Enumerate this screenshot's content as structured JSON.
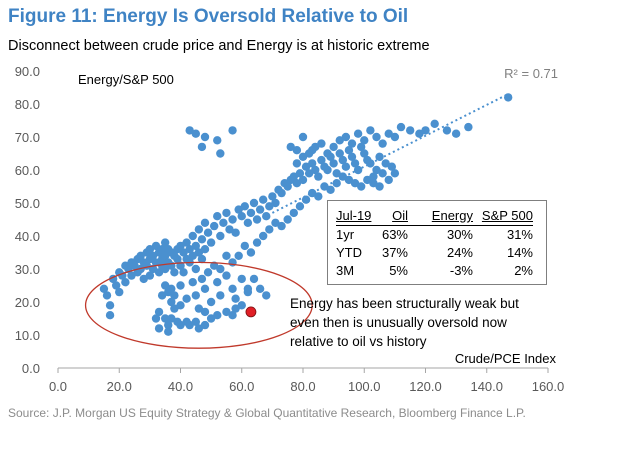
{
  "figure": {
    "title": "Figure 11: Energy Is Oversold Relative to Oil",
    "subtitle": "Disconnect between crude price and Energy is at historic extreme",
    "source": "Source: J.P. Morgan US Equity Strategy & Global Quantitative Research, Bloomberg Finance L.P."
  },
  "chart_data": {
    "type": "scatter",
    "xlabel": "Crude/PCE Index",
    "ylabel": "Energy/S&P 500",
    "xlim": [
      0,
      160
    ],
    "ylim": [
      0,
      90
    ],
    "x_ticks": [
      "0.0",
      "20.0",
      "40.0",
      "60.0",
      "80.0",
      "100.0",
      "120.0",
      "140.0",
      "160.0"
    ],
    "y_ticks": [
      "0.0",
      "10.0",
      "20.0",
      "30.0",
      "40.0",
      "50.0",
      "60.0",
      "70.0",
      "80.0",
      "90.0"
    ],
    "grid": false,
    "r_squared_label": "R² = 0.71",
    "trendline": {
      "style": "dotted",
      "x": [
        70,
        147
      ],
      "y": [
        47,
        83
      ]
    },
    "colors": {
      "points": "#4a90cf",
      "highlight": "#e01f26",
      "trendline": "#4a90cf",
      "ellipse": "#c0392b"
    },
    "current_point": {
      "x": 63,
      "y": 17
    },
    "highlight_region": {
      "cx": 46,
      "cy": 19,
      "rx": 37,
      "ry": 13
    },
    "series": [
      {
        "points": [
          [
            15,
            24
          ],
          [
            16,
            22
          ],
          [
            17,
            19
          ],
          [
            17,
            16
          ],
          [
            18,
            27
          ],
          [
            19,
            25
          ],
          [
            20,
            23
          ],
          [
            20,
            29
          ],
          [
            21,
            28
          ],
          [
            22,
            31
          ],
          [
            22,
            26
          ],
          [
            23,
            30
          ],
          [
            24,
            32
          ],
          [
            24,
            28
          ],
          [
            25,
            31
          ],
          [
            26,
            33
          ],
          [
            26,
            29
          ],
          [
            27,
            34
          ],
          [
            27,
            30
          ],
          [
            28,
            32
          ],
          [
            28,
            27
          ],
          [
            29,
            35
          ],
          [
            29,
            31
          ],
          [
            30,
            36
          ],
          [
            30,
            33
          ],
          [
            30,
            28
          ],
          [
            31,
            34
          ],
          [
            31,
            30
          ],
          [
            32,
            37
          ],
          [
            32,
            32
          ],
          [
            33,
            35
          ],
          [
            33,
            29
          ],
          [
            34,
            36
          ],
          [
            34,
            33
          ],
          [
            34,
            31
          ],
          [
            35,
            38
          ],
          [
            35,
            34
          ],
          [
            35,
            30
          ],
          [
            36,
            36
          ],
          [
            36,
            32
          ],
          [
            37,
            35
          ],
          [
            37,
            31
          ],
          [
            38,
            34
          ],
          [
            38,
            29
          ],
          [
            39,
            36
          ],
          [
            39,
            33
          ],
          [
            40,
            37
          ],
          [
            40,
            31
          ],
          [
            41,
            35
          ],
          [
            42,
            38
          ],
          [
            42,
            33
          ],
          [
            43,
            36
          ],
          [
            44,
            40
          ],
          [
            44,
            34
          ],
          [
            45,
            37
          ],
          [
            46,
            42
          ],
          [
            46,
            35
          ],
          [
            47,
            39
          ],
          [
            48,
            44
          ],
          [
            48,
            36
          ],
          [
            49,
            41
          ],
          [
            50,
            38
          ],
          [
            51,
            43
          ],
          [
            52,
            46
          ],
          [
            53,
            40
          ],
          [
            54,
            44
          ],
          [
            55,
            47
          ],
          [
            56,
            42
          ],
          [
            57,
            45
          ],
          [
            58,
            41
          ],
          [
            59,
            48
          ],
          [
            60,
            46
          ],
          [
            61,
            49
          ],
          [
            62,
            44
          ],
          [
            63,
            47
          ],
          [
            64,
            50
          ],
          [
            65,
            45
          ],
          [
            66,
            48
          ],
          [
            67,
            51
          ],
          [
            68,
            46
          ],
          [
            69,
            49
          ],
          [
            70,
            52
          ],
          [
            71,
            50
          ],
          [
            72,
            54
          ],
          [
            73,
            53
          ],
          [
            74,
            56
          ],
          [
            75,
            55
          ],
          [
            76,
            57
          ],
          [
            77,
            58
          ],
          [
            78,
            56
          ],
          [
            79,
            59
          ],
          [
            80,
            57
          ],
          [
            81,
            61
          ],
          [
            82,
            59
          ],
          [
            83,
            62
          ],
          [
            84,
            60
          ],
          [
            85,
            58
          ],
          [
            86,
            63
          ],
          [
            87,
            61
          ],
          [
            88,
            60
          ],
          [
            89,
            64
          ],
          [
            90,
            62
          ],
          [
            91,
            59
          ],
          [
            92,
            65
          ],
          [
            93,
            63
          ],
          [
            94,
            61
          ],
          [
            95,
            66
          ],
          [
            96,
            64
          ],
          [
            97,
            62
          ],
          [
            98,
            60
          ],
          [
            99,
            67
          ],
          [
            100,
            65
          ],
          [
            101,
            63
          ],
          [
            102,
            62
          ],
          [
            103,
            58
          ],
          [
            104,
            60
          ],
          [
            105,
            64
          ],
          [
            106,
            59
          ],
          [
            107,
            62
          ],
          [
            108,
            57
          ],
          [
            109,
            61
          ],
          [
            110,
            59
          ],
          [
            83,
            66
          ],
          [
            86,
            68
          ],
          [
            88,
            65
          ],
          [
            90,
            67
          ],
          [
            92,
            69
          ],
          [
            94,
            70
          ],
          [
            96,
            68
          ],
          [
            98,
            71
          ],
          [
            100,
            69
          ],
          [
            102,
            72
          ],
          [
            104,
            70
          ],
          [
            106,
            68
          ],
          [
            108,
            71
          ],
          [
            110,
            70
          ],
          [
            112,
            73
          ],
          [
            115,
            72
          ],
          [
            118,
            71
          ],
          [
            120,
            72
          ],
          [
            123,
            74
          ],
          [
            127,
            72
          ],
          [
            130,
            71
          ],
          [
            134,
            73
          ],
          [
            147,
            82
          ],
          [
            76,
            67
          ],
          [
            78,
            62
          ],
          [
            80,
            64
          ],
          [
            78,
            66
          ],
          [
            80,
            70
          ],
          [
            82,
            65
          ],
          [
            84,
            67
          ],
          [
            43,
            72
          ],
          [
            45,
            71
          ],
          [
            47,
            67
          ],
          [
            48,
            70
          ],
          [
            52,
            69
          ],
          [
            57,
            72
          ],
          [
            53,
            65
          ],
          [
            35,
            25
          ],
          [
            37,
            24
          ],
          [
            38,
            22
          ],
          [
            40,
            25
          ],
          [
            42,
            21
          ],
          [
            44,
            26
          ],
          [
            45,
            22
          ],
          [
            47,
            27
          ],
          [
            48,
            24
          ],
          [
            50,
            20
          ],
          [
            52,
            26
          ],
          [
            53,
            22
          ],
          [
            55,
            28
          ],
          [
            57,
            24
          ],
          [
            58,
            21
          ],
          [
            60,
            27
          ],
          [
            62,
            24
          ],
          [
            64,
            27
          ],
          [
            66,
            24
          ],
          [
            68,
            22
          ],
          [
            60,
            19
          ],
          [
            62,
            23
          ],
          [
            37,
            20
          ],
          [
            40,
            19
          ],
          [
            38,
            18
          ],
          [
            34,
            22
          ],
          [
            36,
            23
          ],
          [
            33,
            17
          ],
          [
            35,
            15
          ],
          [
            36,
            13
          ],
          [
            37,
            15
          ],
          [
            39,
            14
          ],
          [
            40,
            13
          ],
          [
            42,
            14
          ],
          [
            43,
            13
          ],
          [
            45,
            14
          ],
          [
            46,
            12
          ],
          [
            48,
            13
          ],
          [
            50,
            15
          ],
          [
            52,
            16
          ],
          [
            55,
            17
          ],
          [
            57,
            16
          ],
          [
            58,
            18
          ],
          [
            46,
            18
          ],
          [
            48,
            17
          ],
          [
            32,
            15
          ],
          [
            33,
            12
          ],
          [
            36,
            11
          ],
          [
            40,
            31
          ],
          [
            41,
            29
          ],
          [
            43,
            32
          ],
          [
            45,
            30
          ],
          [
            47,
            33
          ],
          [
            49,
            29
          ],
          [
            51,
            31
          ],
          [
            53,
            30
          ],
          [
            55,
            34
          ],
          [
            57,
            32
          ],
          [
            59,
            34
          ],
          [
            61,
            37
          ],
          [
            63,
            35
          ],
          [
            65,
            38
          ],
          [
            67,
            40
          ],
          [
            69,
            42
          ],
          [
            71,
            44
          ],
          [
            73,
            43
          ],
          [
            75,
            45
          ],
          [
            77,
            47
          ],
          [
            79,
            49
          ],
          [
            81,
            51
          ],
          [
            83,
            53
          ],
          [
            85,
            52
          ],
          [
            87,
            55
          ],
          [
            89,
            54
          ],
          [
            91,
            56
          ],
          [
            93,
            58
          ],
          [
            95,
            57
          ],
          [
            97,
            56
          ],
          [
            99,
            55
          ],
          [
            101,
            57
          ],
          [
            103,
            56
          ],
          [
            105,
            55
          ]
        ]
      }
    ]
  },
  "inset_table": {
    "header": [
      "Jul-19",
      "Oil",
      "Energy",
      "S&P 500"
    ],
    "rows": [
      {
        "label": "1yr",
        "oil": "63%",
        "energy": "30%",
        "sp": "31%"
      },
      {
        "label": "YTD",
        "oil": "37%",
        "energy": "24%",
        "sp": "14%"
      },
      {
        "label": "3M",
        "oil": "5%",
        "energy": "-3%",
        "sp": "2%"
      }
    ]
  },
  "annotation": "Energy has been structurally weak but even then is unusually oversold now relative to oil vs history"
}
